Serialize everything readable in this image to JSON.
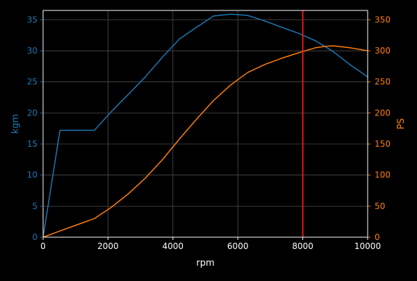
{
  "chart_data": {
    "type": "line",
    "background": "#000000",
    "grid": true,
    "grid_color": "#4d4d4d",
    "axis_color": "#ffffff",
    "x": {
      "label": "rpm",
      "lim": [
        0,
        10000
      ],
      "ticks": [
        0,
        2000,
        4000,
        6000,
        8000,
        10000
      ],
      "tick_labels": [
        "0",
        "2000",
        "4000",
        "6000",
        "8000",
        "10000"
      ]
    },
    "y_left": {
      "label": "kgm",
      "color": "#1f77b4",
      "lim": [
        0,
        36.5
      ],
      "ticks": [
        0,
        5,
        10,
        15,
        20,
        25,
        30,
        35
      ],
      "tick_labels": [
        "0",
        "5",
        "10",
        "15",
        "20",
        "25",
        "30",
        "35"
      ]
    },
    "y_right": {
      "label": "PS",
      "color": "#ff7f0e",
      "lim": [
        0,
        365
      ],
      "ticks": [
        0,
        50,
        100,
        150,
        200,
        250,
        300,
        350
      ],
      "tick_labels": [
        "0",
        "50",
        "100",
        "150",
        "200",
        "250",
        "300",
        "350"
      ]
    },
    "series": [
      {
        "axis": "left",
        "color": "#1f77b4",
        "x": [
          0,
          520,
          1580,
          2100,
          2630,
          3150,
          3680,
          4200,
          4730,
          5250,
          5780,
          6300,
          6830,
          7350,
          7880,
          8400,
          8930,
          9450,
          10000
        ],
        "y": [
          0,
          17.2,
          17.2,
          20.2,
          23.0,
          25.8,
          29.0,
          31.9,
          33.8,
          35.6,
          35.9,
          35.7,
          34.8,
          33.8,
          32.8,
          31.6,
          29.9,
          27.8,
          25.8
        ]
      },
      {
        "axis": "right",
        "color": "#ff7f0e",
        "x": [
          0,
          520,
          1050,
          1580,
          2100,
          2630,
          3150,
          3680,
          4200,
          4730,
          5250,
          5780,
          6300,
          6830,
          7350,
          7880,
          8400,
          8670,
          8930,
          9450,
          10000
        ],
        "y": [
          0,
          10,
          20,
          30,
          48,
          70,
          95,
          125,
          158,
          190,
          220,
          245,
          265,
          278,
          288,
          297,
          305,
          307,
          308,
          305,
          300
        ]
      }
    ],
    "vline": {
      "x": 8000,
      "color": "#e31a1c"
    }
  }
}
